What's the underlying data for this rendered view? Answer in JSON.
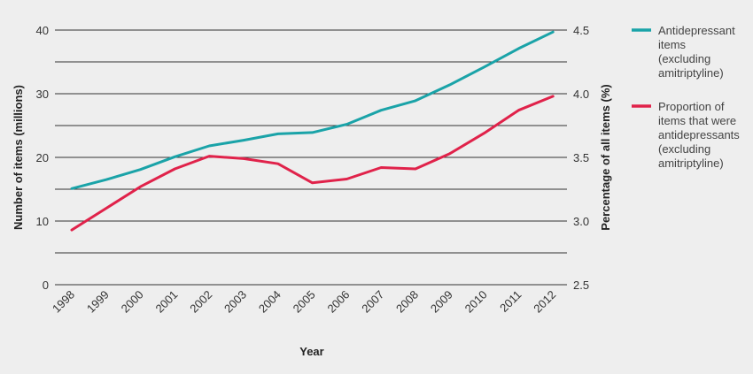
{
  "chart_data": {
    "type": "line",
    "title": "",
    "xlabel": "Year",
    "ylabel_left": "Number of items (millions)",
    "ylabel_right": "Percentage of all items (%)",
    "x": [
      "1998",
      "1999",
      "2000",
      "2001",
      "2002",
      "2003",
      "2004",
      "2005",
      "2006",
      "2007",
      "2008",
      "2009",
      "2010",
      "2011",
      "2012"
    ],
    "yleft_lim": [
      0,
      40
    ],
    "yleft_ticks": [
      "0",
      "10",
      "20",
      "30",
      "40"
    ],
    "yright_lim": [
      2.5,
      4.5
    ],
    "yright_ticks": [
      "2.5",
      "3.0",
      "3.5",
      "4.0",
      "4.5"
    ],
    "grid": true,
    "legend_position": "right",
    "series": [
      {
        "name": "Antidepressant items (excluding amitriptyline)",
        "name_lines": [
          "Antidepressant",
          "items",
          "(excluding",
          "amitriptyline)"
        ],
        "axis": "left",
        "color": "#1aa3a8",
        "values": [
          15.1,
          16.5,
          18.1,
          20.1,
          21.8,
          22.7,
          23.7,
          23.9,
          25.2,
          27.4,
          28.9,
          31.4,
          34.2,
          37.1,
          39.7
        ]
      },
      {
        "name": "Proportion of items that were antidepressants (excluding amitriptyline)",
        "name_lines": [
          "Proportion of",
          "items that were",
          "antidepressants",
          "(excluding",
          "amitriptyline)"
        ],
        "axis": "right",
        "color": "#e0224a",
        "values": [
          2.93,
          3.1,
          3.27,
          3.41,
          3.51,
          3.49,
          3.45,
          3.3,
          3.33,
          3.42,
          3.41,
          3.53,
          3.69,
          3.87,
          3.98
        ]
      }
    ]
  }
}
